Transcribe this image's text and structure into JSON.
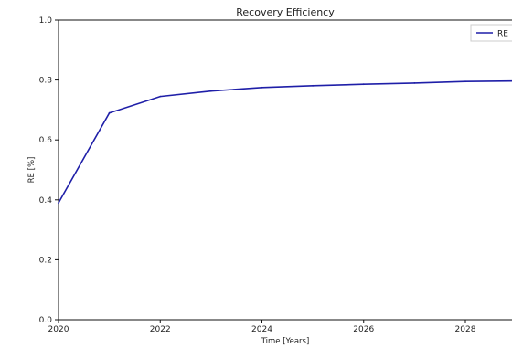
{
  "chart_data": {
    "type": "line",
    "title": "Recovery Efficiency",
    "xlabel": "Time [Years]",
    "ylabel": "RE [%]",
    "xlim": [
      2020,
      2029
    ],
    "ylim": [
      0.0,
      1.0
    ],
    "xticks": [
      2020,
      2022,
      2024,
      2026,
      2028
    ],
    "xtick_labels": [
      "2020",
      "2022",
      "2024",
      "2026",
      "2028"
    ],
    "yticks": [
      0.0,
      0.2,
      0.4,
      0.6,
      0.8,
      1.0
    ],
    "ytick_labels": [
      "0.0",
      "0.2",
      "0.4",
      "0.6",
      "0.8",
      "1.0"
    ],
    "grid": false,
    "legend": {
      "placement": "top-right",
      "label": "RE"
    },
    "series": [
      {
        "name": "RE",
        "color": "#1f1fa8",
        "x": [
          2020,
          2021,
          2022,
          2023,
          2024,
          2025,
          2026,
          2027,
          2028,
          2029
        ],
        "y": [
          0.39,
          0.69,
          0.745,
          0.763,
          0.775,
          0.781,
          0.786,
          0.79,
          0.795,
          0.797
        ]
      }
    ]
  }
}
